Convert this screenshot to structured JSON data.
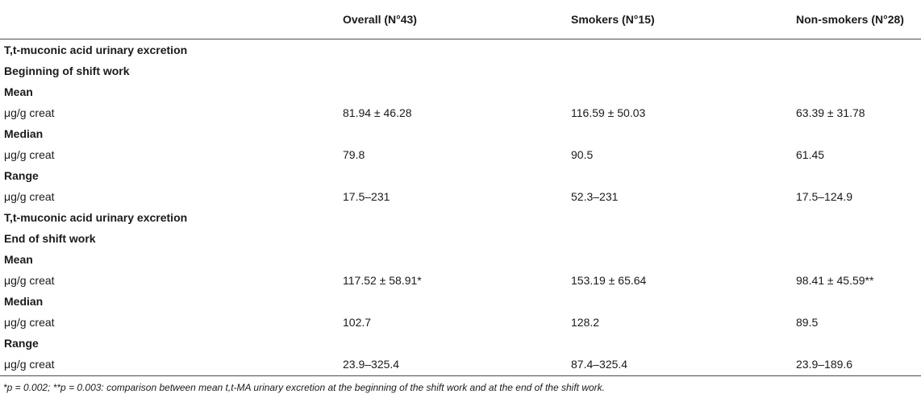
{
  "table": {
    "headers": [
      "",
      "Overall (N°43)",
      "Smokers (N°15)",
      "Non-smokers (N°28)"
    ],
    "rows": [
      {
        "type": "label",
        "cells": [
          "T,t-muconic acid urinary excretion",
          "",
          "",
          ""
        ]
      },
      {
        "type": "label",
        "cells": [
          "Beginning of shift work",
          "",
          "",
          ""
        ]
      },
      {
        "type": "label",
        "cells": [
          "Mean",
          "",
          "",
          ""
        ]
      },
      {
        "type": "value",
        "cells": [
          "μg/g creat",
          "81.94 ± 46.28",
          "116.59 ± 50.03",
          "63.39 ± 31.78"
        ]
      },
      {
        "type": "label",
        "cells": [
          "Median",
          "",
          "",
          ""
        ]
      },
      {
        "type": "value",
        "cells": [
          "μg/g creat",
          "79.8",
          "90.5",
          "61.45"
        ]
      },
      {
        "type": "label",
        "cells": [
          "Range",
          "",
          "",
          ""
        ]
      },
      {
        "type": "value",
        "cells": [
          "μg/g creat",
          "17.5–231",
          "52.3–231",
          "17.5–124.9"
        ]
      },
      {
        "type": "label",
        "cells": [
          "T,t-muconic acid urinary excretion",
          "",
          "",
          ""
        ]
      },
      {
        "type": "label",
        "cells": [
          "End of shift work",
          "",
          "",
          ""
        ]
      },
      {
        "type": "label",
        "cells": [
          "Mean",
          "",
          "",
          ""
        ]
      },
      {
        "type": "value",
        "cells": [
          "μg/g creat",
          "117.52 ± 58.91*",
          "153.19 ± 65.64",
          "98.41 ± 45.59**"
        ]
      },
      {
        "type": "label",
        "cells": [
          "Median",
          "",
          "",
          ""
        ]
      },
      {
        "type": "value",
        "cells": [
          "μg/g creat",
          "102.7",
          "128.2",
          "89.5"
        ]
      },
      {
        "type": "label",
        "cells": [
          "Range",
          "",
          "",
          ""
        ]
      },
      {
        "type": "value",
        "cells": [
          "μg/g creat",
          "23.9–325.4",
          "87.4–325.4",
          "23.9–189.6"
        ]
      }
    ]
  },
  "footnote": "*p = 0.002; **p = 0.003: comparison between mean t,t-MA urinary excretion at the beginning of the shift work and at the end of the shift work."
}
